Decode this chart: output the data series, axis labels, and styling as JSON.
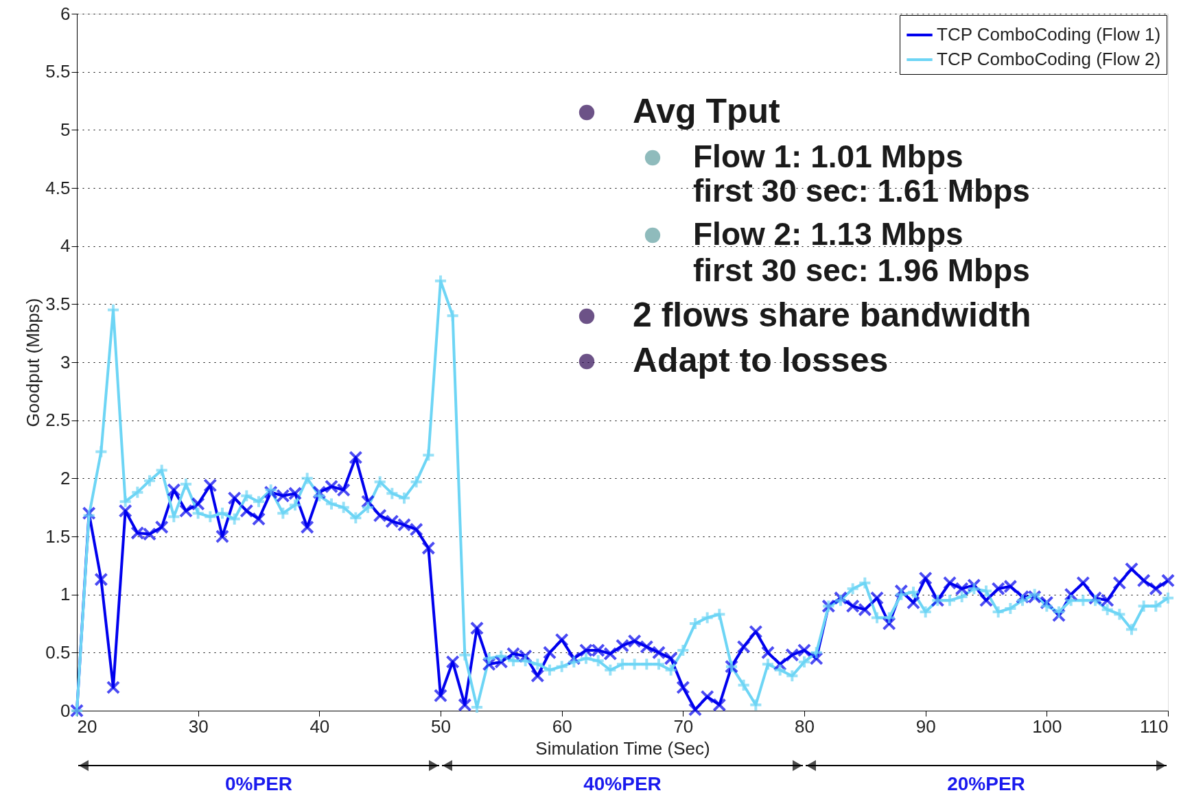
{
  "chart_data": {
    "type": "line",
    "xlabel": "Simulation Time (Sec)",
    "ylabel": "Goodput (Mbps)",
    "x": [
      20,
      21,
      22,
      23,
      24,
      25,
      26,
      27,
      28,
      29,
      30,
      31,
      32,
      33,
      34,
      35,
      36,
      37,
      38,
      39,
      40,
      41,
      42,
      43,
      44,
      45,
      46,
      47,
      48,
      49,
      50,
      51,
      52,
      53,
      54,
      55,
      56,
      57,
      58,
      59,
      60,
      61,
      62,
      63,
      64,
      65,
      66,
      67,
      68,
      69,
      70,
      71,
      72,
      73,
      74,
      75,
      76,
      77,
      78,
      79,
      80,
      81,
      82,
      83,
      84,
      85,
      86,
      87,
      88,
      89,
      90,
      91,
      92,
      93,
      94,
      95,
      96,
      97,
      98,
      99,
      100,
      101,
      102,
      103,
      104,
      105,
      106,
      107,
      108,
      109,
      110
    ],
    "series": [
      {
        "name": "TCP ComboCoding (Flow 1)",
        "color": "#0000ee",
        "marker": "x",
        "values": [
          0,
          1.7,
          1.13,
          0.2,
          1.72,
          1.53,
          1.52,
          1.58,
          1.9,
          1.72,
          1.78,
          1.94,
          1.5,
          1.83,
          1.72,
          1.65,
          1.88,
          1.85,
          1.87,
          1.58,
          1.88,
          1.93,
          1.9,
          2.18,
          1.8,
          1.68,
          1.63,
          1.6,
          1.56,
          1.4,
          0.13,
          0.42,
          0.05,
          0.71,
          0.4,
          0.42,
          0.49,
          0.47,
          0.3,
          0.5,
          0.61,
          0.45,
          0.52,
          0.52,
          0.49,
          0.56,
          0.6,
          0.55,
          0.5,
          0.45,
          0.2,
          0.01,
          0.12,
          0.05,
          0.38,
          0.55,
          0.68,
          0.5,
          0.4,
          0.48,
          0.52,
          0.45,
          0.9,
          0.97,
          0.9,
          0.87,
          0.97,
          0.75,
          1.03,
          0.93,
          1.14,
          0.95,
          1.1,
          1.05,
          1.08,
          0.95,
          1.05,
          1.07,
          0.98,
          0.98,
          0.93,
          0.82,
          1.0,
          1.1,
          0.97,
          0.95,
          1.1,
          1.22,
          1.12,
          1.05,
          1.12
        ]
      },
      {
        "name": "TCP ComboCoding (Flow 2)",
        "color": "#6dd5f5",
        "marker": "cross",
        "values": [
          0,
          1.68,
          2.23,
          3.45,
          1.8,
          1.88,
          1.98,
          2.07,
          1.67,
          1.95,
          1.7,
          1.67,
          1.7,
          1.65,
          1.85,
          1.8,
          1.9,
          1.7,
          1.77,
          2.0,
          1.85,
          1.78,
          1.75,
          1.66,
          1.75,
          1.97,
          1.87,
          1.83,
          1.97,
          2.2,
          3.7,
          3.4,
          0.48,
          0.03,
          0.45,
          0.47,
          0.43,
          0.43,
          0.4,
          0.35,
          0.38,
          0.42,
          0.45,
          0.43,
          0.35,
          0.4,
          0.4,
          0.4,
          0.4,
          0.35,
          0.52,
          0.75,
          0.8,
          0.83,
          0.38,
          0.22,
          0.05,
          0.4,
          0.35,
          0.3,
          0.42,
          0.5,
          0.9,
          0.95,
          1.05,
          1.1,
          0.8,
          0.8,
          1.0,
          1.02,
          0.85,
          0.95,
          0.95,
          0.98,
          1.05,
          1.03,
          0.85,
          0.88,
          0.95,
          1.0,
          0.9,
          0.85,
          0.95,
          0.95,
          0.95,
          0.87,
          0.83,
          0.7,
          0.9,
          0.9,
          0.97
        ]
      }
    ],
    "xlim": [
      20,
      110
    ],
    "xticks": [
      20,
      30,
      40,
      50,
      60,
      70,
      80,
      90,
      100,
      110
    ],
    "ylim": [
      0,
      6
    ],
    "yticks": [
      0,
      0.5,
      1,
      1.5,
      2,
      2.5,
      3,
      3.5,
      4,
      4.5,
      5,
      5.5,
      6
    ],
    "grid": "y",
    "legend": "top right",
    "line_style": "solid",
    "annotations": [
      "Avg Tput",
      "Flow 1: 1.01 Mbps",
      "first 30 sec: 1.61 Mbps",
      "Flow 2: 1.13 Mbps",
      "first 30 sec: 1.96 Mbps",
      "2 flows share bandwidth",
      "Adapt to losses",
      "0%PER",
      "40%PER",
      "20%PER"
    ]
  }
}
